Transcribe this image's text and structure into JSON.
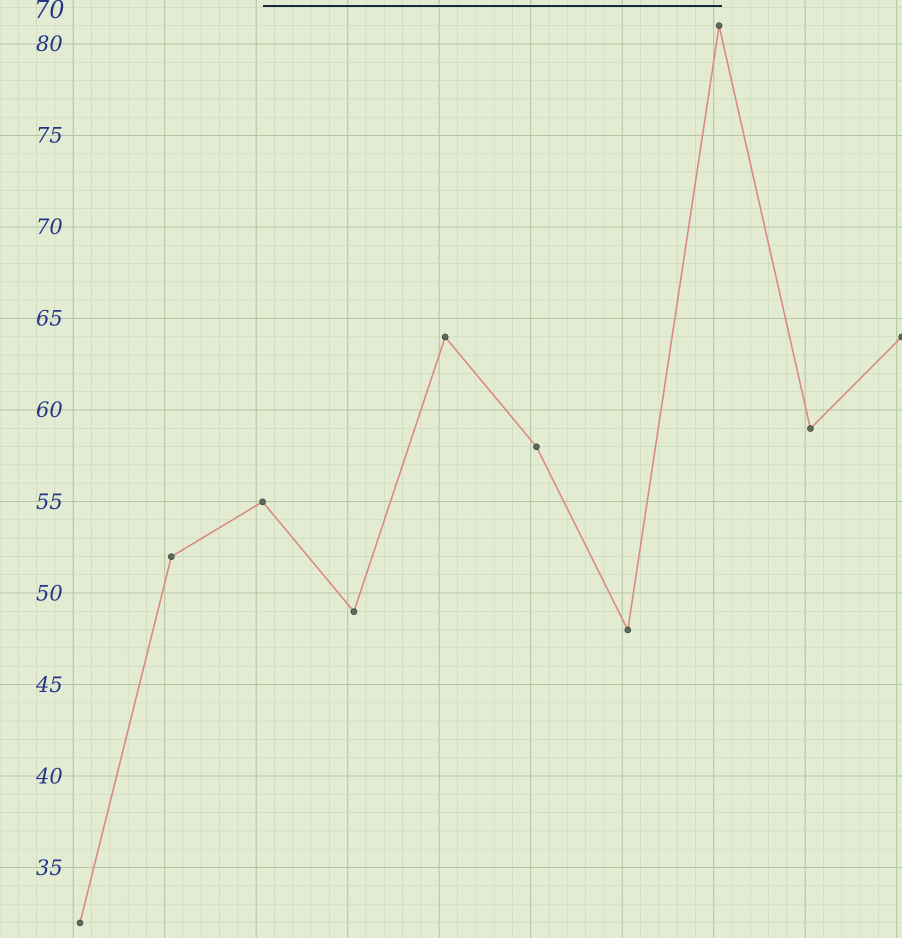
{
  "chart_data": {
    "type": "line",
    "title": "",
    "xlabel": "",
    "ylabel": "",
    "top_label": "70",
    "y_ticks": [
      "35",
      "40",
      "45",
      "50",
      "55",
      "60",
      "65",
      "70",
      "75",
      "80"
    ],
    "y_tick_values": [
      35,
      40,
      45,
      50,
      55,
      60,
      65,
      70,
      75,
      80
    ],
    "ylim": [
      33,
      81
    ],
    "x": [
      1,
      2,
      3,
      4,
      5,
      6,
      7,
      8,
      9,
      10
    ],
    "series": [
      {
        "values": [
          32.0,
          52.0,
          55.0,
          49.0,
          64.0,
          58.0,
          48.0,
          81.0,
          59.0,
          64.0
        ]
      }
    ],
    "grid": true,
    "colors": {
      "background": "#e3ecd2",
      "line": "#d98a7e",
      "ink": "#23358a",
      "point": "#5b6a5c"
    }
  }
}
